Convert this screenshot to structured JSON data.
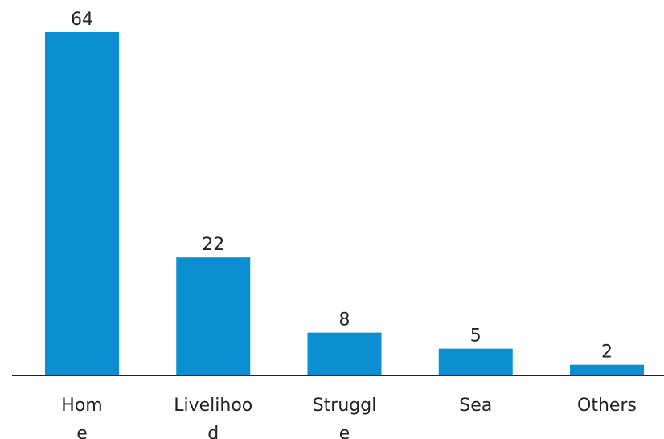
{
  "chart_data": {
    "type": "bar",
    "categories": [
      "Home",
      "Livelihood",
      "Struggle",
      "Sea",
      "Others"
    ],
    "category_label_lines": [
      [
        "Hom",
        "e"
      ],
      [
        "Livelihoo",
        "d"
      ],
      [
        "Struggl",
        "e"
      ],
      [
        "Sea"
      ],
      [
        "Others"
      ]
    ],
    "values": [
      64,
      22,
      8,
      5,
      2
    ],
    "value_labels": [
      "64",
      "22",
      "8",
      "5",
      "2"
    ],
    "title": "",
    "xlabel": "",
    "ylabel": "",
    "ylim": [
      0,
      64
    ],
    "grid": false,
    "bar_color": "#0b8fd0",
    "axis_color": "#222222"
  }
}
